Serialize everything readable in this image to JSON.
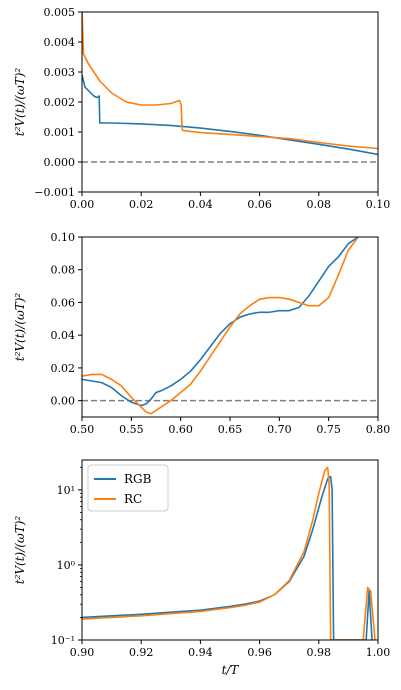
{
  "colors": {
    "RGB": "#1f77b4",
    "RC": "#ff7f0e",
    "zero_line": "#808080"
  },
  "chart_data": [
    {
      "type": "line",
      "ylabel": "t²V(t)/(ωT)²",
      "xlabel": "",
      "xlim": [
        0.0,
        0.1
      ],
      "ylim": [
        -0.001,
        0.005
      ],
      "xticks": [
        "0.00",
        "0.02",
        "0.04",
        "0.06",
        "0.08",
        "0.10"
      ],
      "yticks": [
        "−0.001",
        "0.000",
        "0.001",
        "0.002",
        "0.003",
        "0.004",
        "0.005"
      ],
      "ytick_values": [
        -0.001,
        0,
        0.001,
        0.002,
        0.003,
        0.004,
        0.005
      ],
      "xtick_values": [
        0,
        0.02,
        0.04,
        0.06,
        0.08,
        0.1
      ],
      "hline": 0,
      "series": [
        {
          "name": "RGB",
          "x": [
            0,
            0.0005,
            0.001,
            0.002,
            0.003,
            0.004,
            0.005,
            0.0058,
            0.006,
            0.0062,
            0.01,
            0.02,
            0.03,
            0.04,
            0.05,
            0.06,
            0.07,
            0.08,
            0.09,
            0.1
          ],
          "y": [
            0.0029,
            0.0027,
            0.0025,
            0.0024,
            0.0023,
            0.0022,
            0.00215,
            0.0022,
            0.0013,
            0.0013,
            0.0013,
            0.00127,
            0.00122,
            0.00113,
            0.00102,
            0.00089,
            0.00074,
            0.00059,
            0.00043,
            0.00025
          ]
        },
        {
          "name": "RC",
          "x": [
            0,
            0.0005,
            0.001,
            0.002,
            0.004,
            0.006,
            0.008,
            0.01,
            0.015,
            0.02,
            0.025,
            0.03,
            0.033,
            0.0335,
            0.0338,
            0.034,
            0.04,
            0.05,
            0.06,
            0.07,
            0.08,
            0.09,
            0.1
          ],
          "y": [
            0.0051,
            0.0036,
            0.0035,
            0.0033,
            0.003,
            0.0027,
            0.0025,
            0.0023,
            0.002,
            0.0019,
            0.0019,
            0.00195,
            0.00205,
            0.0019,
            0.00115,
            0.00105,
            0.00098,
            0.00092,
            0.00085,
            0.00078,
            0.00065,
            0.00053,
            0.00045
          ]
        }
      ]
    },
    {
      "type": "line",
      "ylabel": "t²V(t)/(ωT)²",
      "xlabel": "",
      "xlim": [
        0.5,
        0.8
      ],
      "ylim": [
        -0.01,
        0.1
      ],
      "xticks": [
        "0.50",
        "0.55",
        "0.60",
        "0.65",
        "0.70",
        "0.75",
        "0.80"
      ],
      "yticks": [
        "0.00",
        "0.02",
        "0.04",
        "0.06",
        "0.08",
        "0.10"
      ],
      "ytick_values": [
        0,
        0.02,
        0.04,
        0.06,
        0.08,
        0.1
      ],
      "xtick_values": [
        0.5,
        0.55,
        0.6,
        0.65,
        0.7,
        0.75,
        0.8
      ],
      "hline": 0,
      "series": [
        {
          "name": "RGB",
          "x": [
            0.5,
            0.51,
            0.52,
            0.53,
            0.54,
            0.55,
            0.56,
            0.565,
            0.57,
            0.575,
            0.58,
            0.59,
            0.6,
            0.61,
            0.62,
            0.63,
            0.64,
            0.65,
            0.66,
            0.67,
            0.68,
            0.69,
            0.7,
            0.71,
            0.72,
            0.73,
            0.74,
            0.75,
            0.76,
            0.77,
            0.78
          ],
          "y": [
            0.013,
            0.012,
            0.011,
            0.008,
            0.003,
            -0.001,
            -0.003,
            -0.002,
            0.001,
            0.005,
            0.006,
            0.009,
            0.013,
            0.018,
            0.025,
            0.033,
            0.041,
            0.047,
            0.051,
            0.053,
            0.054,
            0.054,
            0.055,
            0.055,
            0.057,
            0.064,
            0.073,
            0.082,
            0.088,
            0.096,
            0.1
          ]
        },
        {
          "name": "RC",
          "x": [
            0.5,
            0.51,
            0.52,
            0.53,
            0.54,
            0.55,
            0.56,
            0.565,
            0.57,
            0.575,
            0.58,
            0.59,
            0.6,
            0.61,
            0.62,
            0.63,
            0.64,
            0.65,
            0.66,
            0.67,
            0.68,
            0.69,
            0.7,
            0.71,
            0.72,
            0.73,
            0.74,
            0.75,
            0.76,
            0.77,
            0.78
          ],
          "y": [
            0.015,
            0.016,
            0.016,
            0.013,
            0.009,
            0.002,
            -0.004,
            -0.007,
            -0.008,
            -0.006,
            -0.004,
            0.0,
            0.005,
            0.01,
            0.018,
            0.027,
            0.036,
            0.045,
            0.053,
            0.058,
            0.062,
            0.063,
            0.063,
            0.062,
            0.06,
            0.058,
            0.058,
            0.063,
            0.077,
            0.092,
            0.1
          ]
        }
      ]
    },
    {
      "type": "line",
      "ylabel": "t²V(t)/(ωT)²",
      "xlabel": "t/T",
      "xlim": [
        0.9,
        1.0
      ],
      "ylim": [
        0.1,
        25
      ],
      "yscale": "log",
      "xticks": [
        "0.90",
        "0.92",
        "0.94",
        "0.96",
        "0.98",
        "1.00"
      ],
      "yticks": [
        "10⁻¹",
        "10⁰",
        "10¹"
      ],
      "ytick_values": [
        0.1,
        1,
        10
      ],
      "xtick_values": [
        0.9,
        0.92,
        0.94,
        0.96,
        0.98,
        1.0
      ],
      "legend": {
        "location": "top-left",
        "entries": [
          "RGB",
          "RC"
        ]
      },
      "series": [
        {
          "name": "RGB",
          "x": [
            0.9,
            0.91,
            0.92,
            0.93,
            0.94,
            0.95,
            0.955,
            0.96,
            0.965,
            0.97,
            0.975,
            0.978,
            0.981,
            0.983,
            0.984,
            0.9845,
            0.985,
            0.996,
            0.997,
            0.998
          ],
          "y": [
            0.2,
            0.21,
            0.22,
            0.235,
            0.25,
            0.28,
            0.3,
            0.33,
            0.4,
            0.6,
            1.3,
            3.0,
            8.0,
            14.0,
            15.0,
            10.0,
            0.1,
            0.1,
            0.45,
            0.1
          ]
        },
        {
          "name": "RC",
          "x": [
            0.9,
            0.91,
            0.92,
            0.93,
            0.94,
            0.95,
            0.955,
            0.96,
            0.965,
            0.97,
            0.975,
            0.978,
            0.98,
            0.982,
            0.983,
            0.9835,
            0.984,
            0.995,
            0.9965,
            0.9975,
            0.999
          ],
          "y": [
            0.19,
            0.2,
            0.21,
            0.225,
            0.24,
            0.27,
            0.29,
            0.32,
            0.4,
            0.62,
            1.5,
            4.0,
            9.0,
            18.0,
            20.0,
            12.0,
            0.1,
            0.1,
            0.5,
            0.45,
            0.1
          ]
        }
      ]
    }
  ]
}
